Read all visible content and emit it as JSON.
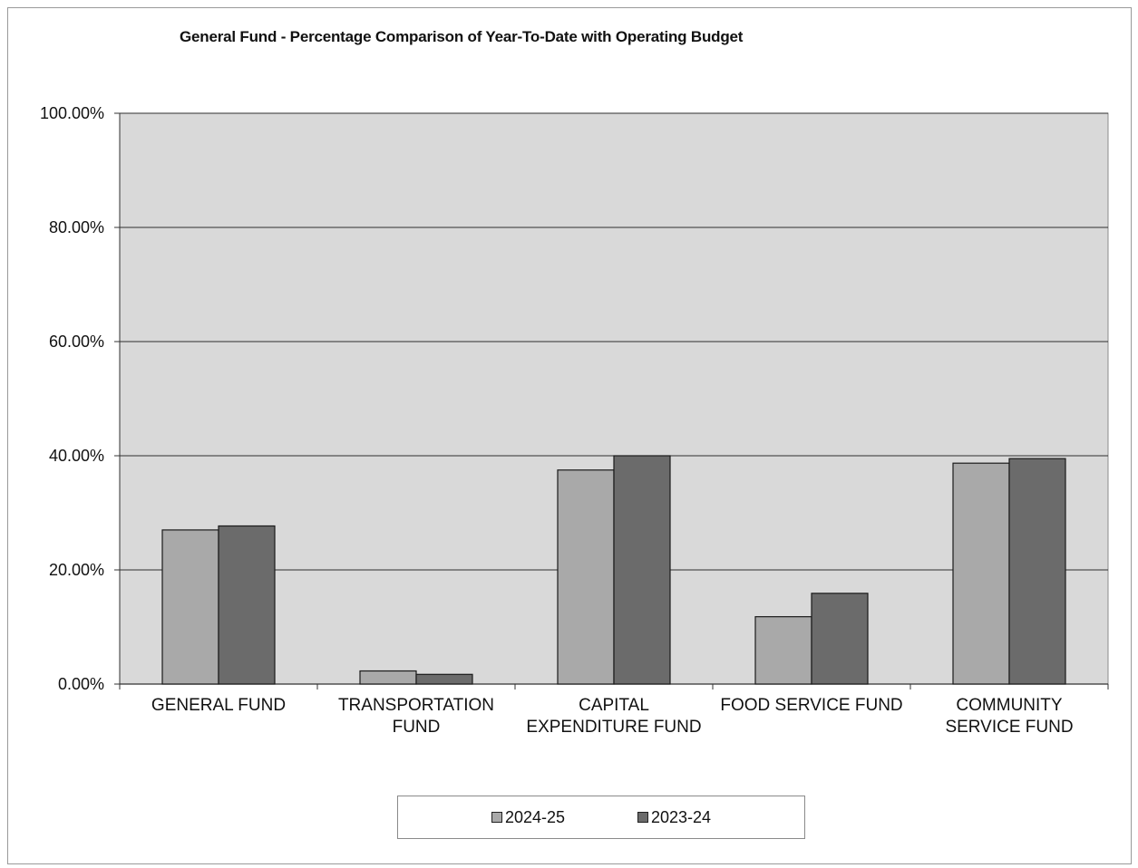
{
  "chart_data": {
    "type": "bar",
    "title": "General Fund - Percentage Comparison of Year-To-Date with Operating Budget",
    "categories": [
      [
        "GENERAL FUND"
      ],
      [
        "TRANSPORTATION",
        "FUND"
      ],
      [
        "CAPITAL",
        "EXPENDITURE FUND"
      ],
      [
        "FOOD SERVICE FUND"
      ],
      [
        "COMMUNITY",
        "SERVICE FUND"
      ]
    ],
    "series": [
      {
        "name": "2024-25",
        "color": "#a9a9a9",
        "values": [
          27.0,
          2.3,
          37.5,
          11.8,
          38.7
        ]
      },
      {
        "name": "2023-24",
        "color": "#6b6b6b",
        "values": [
          27.7,
          1.7,
          40.0,
          15.9,
          39.5
        ]
      }
    ],
    "ylim": [
      0,
      100
    ],
    "yticks": [
      "0.00%",
      "20.00%",
      "40.00%",
      "60.00%",
      "80.00%",
      "100.00%"
    ],
    "ytick_values": [
      0,
      20,
      40,
      60,
      80,
      100
    ],
    "grid": true,
    "plot_background": "#d9d9d9",
    "legend": "bottom"
  }
}
